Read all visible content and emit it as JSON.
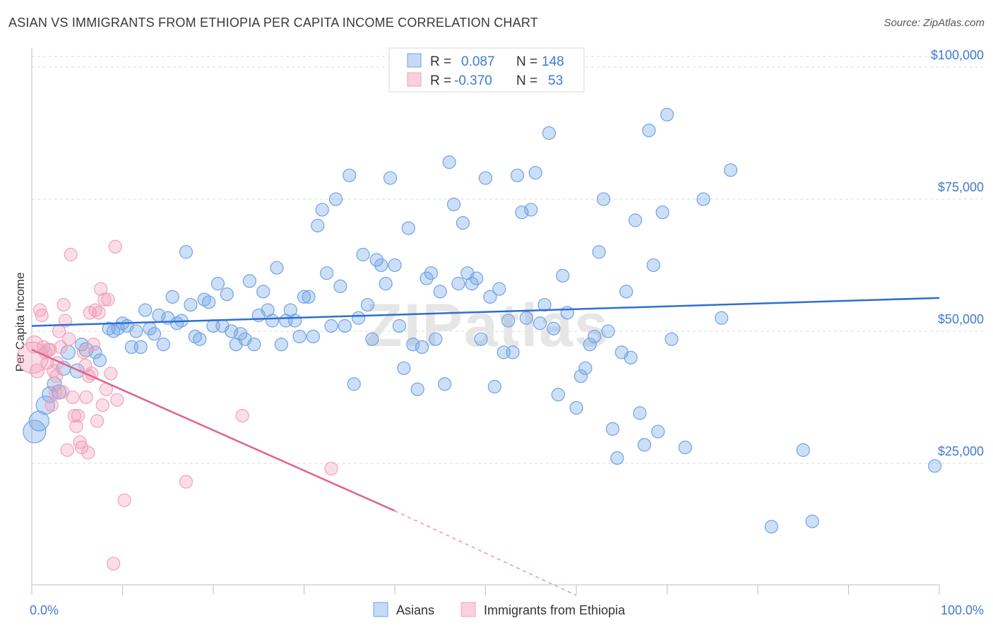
{
  "title": "ASIAN VS IMMIGRANTS FROM ETHIOPIA PER CAPITA INCOME CORRELATION CHART",
  "source": "Source: ZipAtlas.com",
  "watermark": "ZIPatlas",
  "colors": {
    "asian": "#6fa3e6",
    "asian_line": "#2f6fd0",
    "ethiopia": "#f2a0ba",
    "ethiopia_line": "#e0628f",
    "axis_text": "#3d7bd4",
    "grid": "#d8d8d8"
  },
  "legend": {
    "rows": [
      {
        "r_label": "R =",
        "r_value": "0.087",
        "n_label": "N =",
        "n_value": "148"
      },
      {
        "r_label": "R =",
        "r_value": "-0.370",
        "n_label": "N =",
        "n_value": "53"
      }
    ]
  },
  "bottom_legend": [
    "Asians",
    "Immigrants from Ethiopia"
  ],
  "chart_data": {
    "type": "scatter",
    "title": "ASIAN VS IMMIGRANTS FROM ETHIOPIA PER CAPITA INCOME CORRELATION CHART",
    "xlabel": "",
    "ylabel": "Per Capita Income",
    "xlim": [
      0,
      100
    ],
    "ylim": [
      2000,
      102000
    ],
    "x_tick_labels": [
      "0.0%",
      "100.0%"
    ],
    "y_ticks": [
      25000,
      50000,
      75000,
      100000
    ],
    "y_tick_labels": [
      "$25,000",
      "$50,000",
      "$75,000",
      "$100,000"
    ],
    "grid": true,
    "legend_position": "top-center",
    "series": [
      {
        "name": "Asians",
        "r": 0.087,
        "n": 148,
        "trend": [
          [
            0,
            51000
          ],
          [
            100,
            56300
          ]
        ],
        "points": [
          [
            0.3,
            31000,
            16
          ],
          [
            0.8,
            33000,
            14
          ],
          [
            1.5,
            36000,
            13
          ],
          [
            2,
            38000,
            11
          ],
          [
            2.5,
            40000,
            10
          ],
          [
            3,
            38500,
            10
          ],
          [
            3.5,
            43000,
            10
          ],
          [
            4,
            46000,
            10
          ],
          [
            5,
            42500,
            10
          ],
          [
            5.5,
            47500,
            9
          ],
          [
            6,
            46500,
            10
          ],
          [
            7,
            46000,
            9
          ],
          [
            7.5,
            44500,
            9
          ],
          [
            8.5,
            50500,
            9
          ],
          [
            9,
            50000,
            9
          ],
          [
            9.5,
            50500,
            9
          ],
          [
            10,
            51500,
            9
          ],
          [
            10.5,
            51000,
            9
          ],
          [
            11,
            47000,
            9
          ],
          [
            11.5,
            50000,
            9
          ],
          [
            12,
            47000,
            9
          ],
          [
            12.5,
            54000,
            9
          ],
          [
            13,
            50500,
            9
          ],
          [
            13.5,
            49500,
            9
          ],
          [
            14,
            53000,
            9
          ],
          [
            14.5,
            47500,
            9
          ],
          [
            15,
            52500,
            9
          ],
          [
            15.5,
            56500,
            9
          ],
          [
            16,
            51500,
            9
          ],
          [
            16.5,
            52000,
            9
          ],
          [
            17,
            65000,
            9
          ],
          [
            17.5,
            55000,
            9
          ],
          [
            18,
            49000,
            9
          ],
          [
            18.5,
            48500,
            9
          ],
          [
            19,
            56000,
            9
          ],
          [
            19.5,
            55500,
            9
          ],
          [
            20,
            51000,
            9
          ],
          [
            20.5,
            59000,
            9
          ],
          [
            21,
            51000,
            9
          ],
          [
            21.5,
            57000,
            9
          ],
          [
            22,
            50000,
            9
          ],
          [
            22.5,
            47500,
            9
          ],
          [
            23,
            49500,
            9
          ],
          [
            23.5,
            48500,
            9
          ],
          [
            24,
            59500,
            9
          ],
          [
            24.5,
            47500,
            9
          ],
          [
            25,
            53000,
            9
          ],
          [
            25.5,
            57500,
            9
          ],
          [
            26,
            54000,
            9
          ],
          [
            26.5,
            52000,
            9
          ],
          [
            27,
            62000,
            9
          ],
          [
            27.5,
            47500,
            9
          ],
          [
            28,
            52000,
            9
          ],
          [
            28.5,
            54000,
            9
          ],
          [
            29,
            52000,
            9
          ],
          [
            29.5,
            49000,
            9
          ],
          [
            30,
            56500,
            9
          ],
          [
            30.5,
            56500,
            9
          ],
          [
            31,
            49000,
            9
          ],
          [
            31.5,
            70000,
            9
          ],
          [
            32,
            73000,
            9
          ],
          [
            32.5,
            61000,
            9
          ],
          [
            33,
            51000,
            9
          ],
          [
            33.5,
            75000,
            9
          ],
          [
            34,
            58500,
            9
          ],
          [
            34.5,
            51000,
            9
          ],
          [
            35,
            79500,
            9
          ],
          [
            35.5,
            40000,
            9
          ],
          [
            36,
            52500,
            9
          ],
          [
            36.5,
            64500,
            9
          ],
          [
            37,
            55000,
            9
          ],
          [
            37.5,
            48500,
            9
          ],
          [
            38,
            63500,
            9
          ],
          [
            38.5,
            62500,
            9
          ],
          [
            39,
            59000,
            9
          ],
          [
            39.5,
            79000,
            9
          ],
          [
            40,
            62500,
            9
          ],
          [
            40.5,
            51000,
            9
          ],
          [
            41,
            43000,
            9
          ],
          [
            41.5,
            69500,
            9
          ],
          [
            42,
            47500,
            9
          ],
          [
            42.5,
            39000,
            9
          ],
          [
            43,
            47000,
            9
          ],
          [
            43.5,
            60000,
            9
          ],
          [
            44,
            61000,
            9
          ],
          [
            44.5,
            48500,
            9
          ],
          [
            45,
            57500,
            9
          ],
          [
            45.5,
            40000,
            9
          ],
          [
            46,
            82000,
            9
          ],
          [
            46.5,
            74000,
            9
          ],
          [
            47,
            59000,
            9
          ],
          [
            47.5,
            70500,
            9
          ],
          [
            48,
            61000,
            9
          ],
          [
            48.5,
            59000,
            9
          ],
          [
            49,
            60000,
            9
          ],
          [
            49.5,
            48500,
            9
          ],
          [
            50,
            79000,
            9
          ],
          [
            50.5,
            56500,
            9
          ],
          [
            51,
            39500,
            9
          ],
          [
            51.5,
            58000,
            9
          ],
          [
            52,
            46000,
            9
          ],
          [
            52.5,
            52000,
            9
          ],
          [
            53,
            46000,
            9
          ],
          [
            53.5,
            79500,
            9
          ],
          [
            54,
            72500,
            9
          ],
          [
            54.5,
            52500,
            9
          ],
          [
            55,
            73000,
            9
          ],
          [
            55.5,
            80000,
            9
          ],
          [
            56,
            51500,
            9
          ],
          [
            56.5,
            55000,
            9
          ],
          [
            57,
            87500,
            9
          ],
          [
            57.5,
            50500,
            9
          ],
          [
            58,
            38000,
            9
          ],
          [
            58.5,
            60500,
            9
          ],
          [
            59,
            53500,
            9
          ],
          [
            60,
            35500,
            9
          ],
          [
            60.5,
            41500,
            9
          ],
          [
            61,
            43000,
            9
          ],
          [
            61.5,
            47500,
            9
          ],
          [
            62,
            49000,
            9
          ],
          [
            62.5,
            65000,
            9
          ],
          [
            63,
            75000,
            9
          ],
          [
            63.5,
            50000,
            9
          ],
          [
            64,
            31500,
            9
          ],
          [
            64.5,
            26000,
            9
          ],
          [
            65,
            46000,
            9
          ],
          [
            65.5,
            57500,
            9
          ],
          [
            66,
            45000,
            9
          ],
          [
            66.5,
            71000,
            9
          ],
          [
            67,
            34500,
            9
          ],
          [
            67.5,
            28500,
            9
          ],
          [
            68,
            88000,
            9
          ],
          [
            68.5,
            62500,
            9
          ],
          [
            69,
            31000,
            9
          ],
          [
            69.5,
            72500,
            9
          ],
          [
            70,
            91000,
            9
          ],
          [
            70.5,
            48500,
            9
          ],
          [
            72,
            28000,
            9
          ],
          [
            74,
            75000,
            9
          ],
          [
            76,
            52500,
            9
          ],
          [
            77,
            80500,
            9
          ],
          [
            81.5,
            13000,
            9
          ],
          [
            85,
            27500,
            9
          ],
          [
            86,
            14000,
            9
          ],
          [
            99.5,
            24500,
            9
          ]
        ]
      },
      {
        "name": "Immigrants from Ethiopia",
        "r": -0.37,
        "n": 53,
        "trend": [
          [
            0,
            46500
          ],
          [
            40,
            16000
          ]
        ],
        "trend_dashed": [
          [
            40,
            16000
          ],
          [
            60,
            0
          ]
        ],
        "points": [
          [
            0.1,
            45000,
            22
          ],
          [
            0.3,
            47500,
            12
          ],
          [
            0.6,
            42500,
            10
          ],
          [
            0.9,
            54000,
            9
          ],
          [
            1.1,
            53000,
            9
          ],
          [
            1.3,
            47000,
            9
          ],
          [
            1.5,
            46000,
            9
          ],
          [
            1.7,
            44000,
            9
          ],
          [
            2,
            46500,
            9
          ],
          [
            2.2,
            36000,
            9
          ],
          [
            2.4,
            42500,
            9
          ],
          [
            2.6,
            38500,
            9
          ],
          [
            2.8,
            44000,
            9
          ],
          [
            3,
            50000,
            9
          ],
          [
            3.2,
            47000,
            9
          ],
          [
            3.4,
            38500,
            9
          ],
          [
            3.5,
            55000,
            9
          ],
          [
            3.7,
            52000,
            9
          ],
          [
            3.9,
            27500,
            9
          ],
          [
            4.1,
            48500,
            9
          ],
          [
            4.3,
            64500,
            9
          ],
          [
            4.5,
            37500,
            9
          ],
          [
            4.7,
            34000,
            9
          ],
          [
            4.9,
            32000,
            9
          ],
          [
            5.1,
            34000,
            9
          ],
          [
            5.3,
            29000,
            9
          ],
          [
            5.5,
            28000,
            9
          ],
          [
            5.7,
            46000,
            9
          ],
          [
            5.9,
            43500,
            9
          ],
          [
            6,
            37500,
            9
          ],
          [
            6.2,
            27000,
            9
          ],
          [
            6.4,
            53500,
            9
          ],
          [
            6.6,
            42000,
            9
          ],
          [
            6.8,
            47500,
            9
          ],
          [
            7,
            54000,
            9
          ],
          [
            7.2,
            33000,
            9
          ],
          [
            7.4,
            53500,
            9
          ],
          [
            7.6,
            58000,
            9
          ],
          [
            7.8,
            36000,
            9
          ],
          [
            8,
            56000,
            9
          ],
          [
            8.2,
            39000,
            9
          ],
          [
            8.4,
            56000,
            9
          ],
          [
            8.7,
            42000,
            9
          ],
          [
            9,
            6000,
            9
          ],
          [
            9.2,
            66000,
            9
          ],
          [
            9.4,
            37000,
            9
          ],
          [
            10.2,
            18000,
            9
          ],
          [
            17,
            21500,
            9
          ],
          [
            23.2,
            34000,
            9
          ],
          [
            33,
            24000,
            9
          ],
          [
            1.8,
            46500,
            9
          ],
          [
            2.7,
            41500,
            9
          ],
          [
            6.3,
            41500,
            9
          ]
        ]
      }
    ]
  }
}
